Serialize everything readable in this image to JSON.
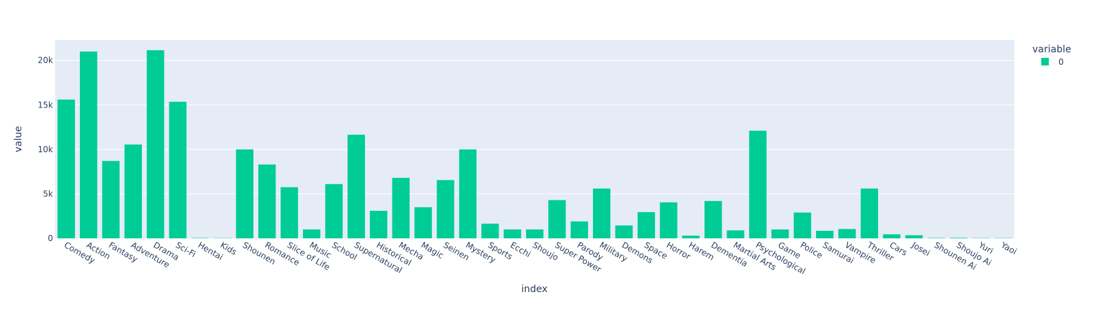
{
  "chart_data": {
    "type": "bar",
    "xlabel": "index",
    "ylabel": "value",
    "ylim": [
      0,
      22300
    ],
    "yticks": [
      {
        "value": 0,
        "label": "0"
      },
      {
        "value": 5000,
        "label": "5k"
      },
      {
        "value": 10000,
        "label": "10k"
      },
      {
        "value": 15000,
        "label": "15k"
      },
      {
        "value": 20000,
        "label": "20k"
      }
    ],
    "grid": true,
    "legend": {
      "title": "variable",
      "position": "top-right"
    },
    "colors": {
      "bar": "#00cc96",
      "plot_bg": "#e5ecf6",
      "grid": "#ffffff",
      "text": "#2a3f5f"
    },
    "categories": [
      "Comedy",
      "Action",
      "Fantasy",
      "Adventure",
      "Drama",
      "Sci-Fi",
      "Hentai",
      "Kids",
      "Shounen",
      "Romance",
      "Slice of Life",
      "Music",
      "School",
      "Supernatural",
      "Historical",
      "Mecha",
      "Magic",
      "Seinen",
      "Mystery",
      "Sports",
      "Ecchi",
      "Shoujo",
      "Super Power",
      "Parody",
      "Military",
      "Demons",
      "Space",
      "Horror",
      "Harem",
      "Dementia",
      "Martial Arts",
      "Psychological",
      "Game",
      "Police",
      "Samurai",
      "Vampire",
      "Thriller",
      "Cars",
      "Josei",
      "Shounen Ai",
      "Shoujo Ai",
      "Yuri",
      "Yaoi"
    ],
    "series": [
      {
        "name": "0",
        "values": [
          15600,
          21000,
          8700,
          10550,
          21150,
          15350,
          40,
          30,
          10000,
          8300,
          5750,
          1000,
          6100,
          11650,
          3100,
          6800,
          3500,
          6550,
          10000,
          1650,
          1000,
          1000,
          4300,
          1900,
          5600,
          1450,
          2950,
          4050,
          300,
          4200,
          900,
          12100,
          1000,
          2900,
          850,
          1050,
          5600,
          450,
          350,
          40,
          60,
          30,
          30
        ]
      }
    ]
  }
}
